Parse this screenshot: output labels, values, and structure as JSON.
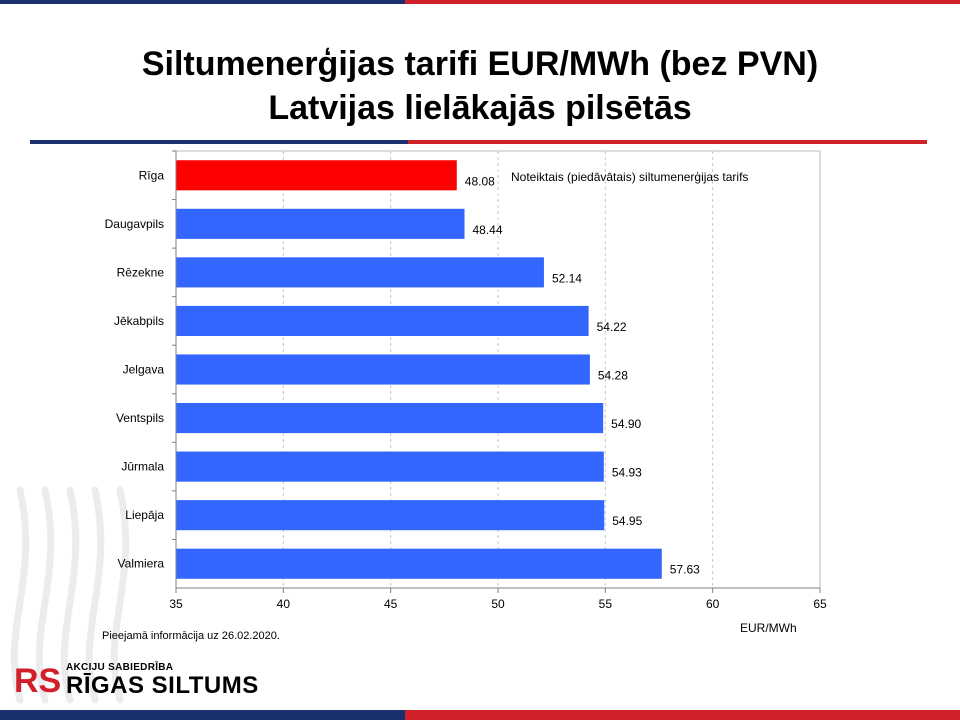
{
  "title": {
    "line1": "Siltumenerģijas tarifi EUR/MWh (bez PVN)",
    "line2": "Latvijas lielākajās pilsētās"
  },
  "colors": {
    "navy": "#1a2f6e",
    "red": "#d0202a",
    "bar_default": "#3366ff",
    "bar_highlight": "#ff0000"
  },
  "note": "Pieejamā informācija uz 26.02.2020.",
  "logo": {
    "company_type": "AKCIJU SABIEDRĪBA",
    "company_name": "RĪGAS SILTUMS",
    "mark": "RS"
  },
  "chart_data": {
    "type": "bar",
    "orientation": "horizontal",
    "categories": [
      "Rīga",
      "Daugavpils",
      "Rēzekne",
      "Jēkabpils",
      "Jelgava",
      "Ventspils",
      "Jūrmala",
      "Liepāja",
      "Valmiera"
    ],
    "values": [
      48.08,
      48.44,
      52.14,
      54.22,
      54.28,
      54.9,
      54.93,
      54.95,
      57.63
    ],
    "value_labels": [
      "48.08",
      "48.44",
      "52.14",
      "54.22",
      "54.28",
      "54.90",
      "54.93",
      "54.95",
      "57.63"
    ],
    "highlight_index": 0,
    "annotation": "Noteiktais (piedāvātais) siltumenerģijas tarifs",
    "xlabel": "EUR/MWh",
    "xlim": [
      35,
      65
    ],
    "xticks": [
      35,
      40,
      45,
      50,
      55,
      60,
      65
    ],
    "grid": "vertical-dashed"
  }
}
